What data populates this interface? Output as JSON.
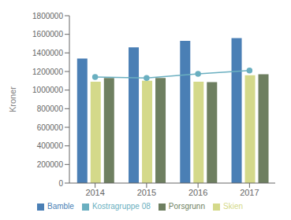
{
  "chart_data": {
    "type": "bar",
    "categories": [
      "2014",
      "2015",
      "2016",
      "2017"
    ],
    "series": [
      {
        "name": "Bamble",
        "color": "#4a7fb5",
        "values": [
          1340000,
          1460000,
          1530000,
          1560000
        ]
      },
      {
        "name": "Kostragruppe 08",
        "color": "#6aafc0",
        "type": "line",
        "marker": "circle",
        "values": [
          1140000,
          1130000,
          1175000,
          1210000
        ]
      },
      {
        "name": "Skien",
        "color": "#d4d98a",
        "values": [
          1090000,
          1100000,
          1090000,
          1160000
        ]
      },
      {
        "name": "Porsgrunn",
        "color": "#6e7f60",
        "values": [
          1130000,
          1130000,
          1085000,
          1170000
        ]
      }
    ],
    "ylabel": "Kroner",
    "ylim": [
      0,
      1800000
    ],
    "yticks": [
      0,
      200000,
      400000,
      600000,
      800000,
      1000000,
      1200000,
      1400000,
      1600000,
      1800000
    ],
    "grid": false,
    "legend": "bottom"
  }
}
